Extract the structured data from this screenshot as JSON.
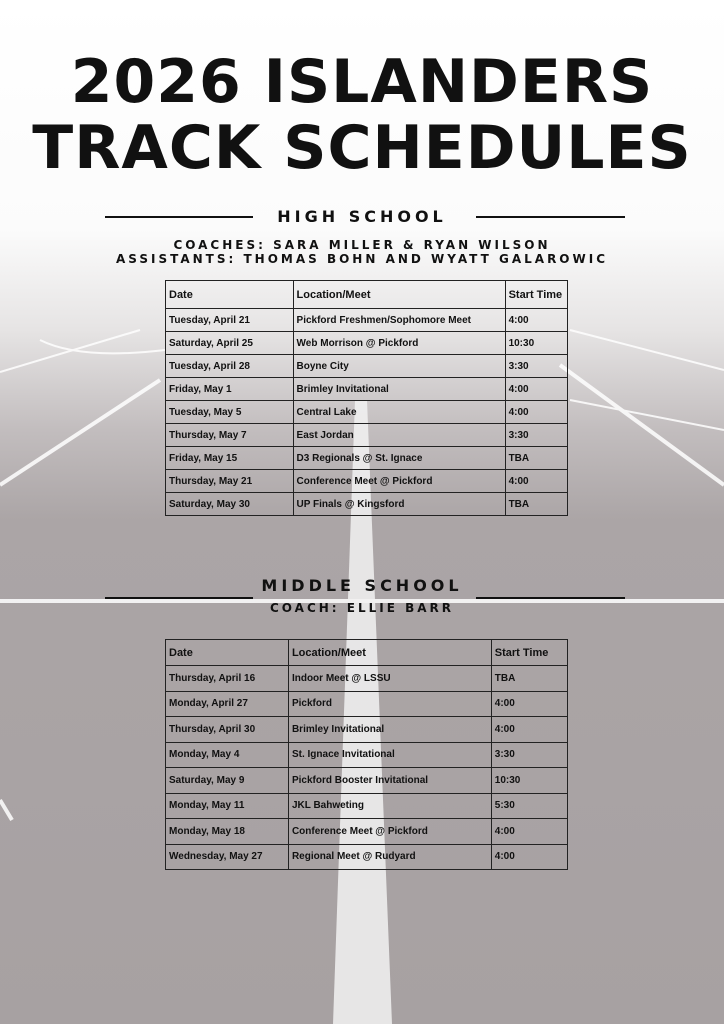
{
  "title_line1": "2026 ISLANDERS",
  "title_line2": "TRACK SCHEDULES",
  "high_school": {
    "heading": "HIGH SCHOOL",
    "coaches": "COACHES:  SARA MILLER & RYAN WILSON",
    "assistants": "ASSISTANTS:  THOMAS BOHN AND WYATT GALAROWIC",
    "columns": [
      "Date",
      "Location/Meet",
      "Start Time"
    ],
    "rows": [
      [
        "Tuesday, April 21",
        "Pickford Freshmen/Sophomore Meet",
        "4:00"
      ],
      [
        "Saturday, April 25",
        "Web Morrison @ Pickford",
        "10:30"
      ],
      [
        "Tuesday, April 28",
        "Boyne City",
        "3:30"
      ],
      [
        "Friday, May 1",
        "Brimley Invitational",
        "4:00"
      ],
      [
        "Tuesday, May 5",
        "Central Lake",
        "4:00"
      ],
      [
        "Thursday, May 7",
        "East Jordan",
        "3:30"
      ],
      [
        "Friday, May 15",
        "D3 Regionals @ St. Ignace",
        "TBA"
      ],
      [
        "Thursday, May 21",
        "Conference Meet @ Pickford",
        "4:00"
      ],
      [
        "Saturday, May 30",
        "UP Finals @ Kingsford",
        "TBA"
      ]
    ]
  },
  "middle_school": {
    "heading": "MIDDLE SCHOOL",
    "coach": "COACH: ELLIE BARR",
    "columns": [
      "Date",
      "Location/Meet",
      "Start Time"
    ],
    "rows": [
      [
        "Thursday, April 16",
        "Indoor Meet @ LSSU",
        "TBA"
      ],
      [
        "Monday, April 27",
        "Pickford",
        "4:00"
      ],
      [
        "Thursday, April 30",
        "Brimley Invitational",
        "4:00"
      ],
      [
        "Monday, May 4",
        "St. Ignace Invitational",
        "3:30"
      ],
      [
        "Saturday, May 9",
        "Pickford Booster Invitational",
        "10:30"
      ],
      [
        "Monday, May 11",
        "JKL Bahweting",
        "5:30"
      ],
      [
        "Monday, May 18",
        "Conference Meet @ Pickford",
        "4:00"
      ],
      [
        "Wednesday, May 27",
        "Regional Meet @ Rudyard",
        "4:00"
      ]
    ]
  }
}
